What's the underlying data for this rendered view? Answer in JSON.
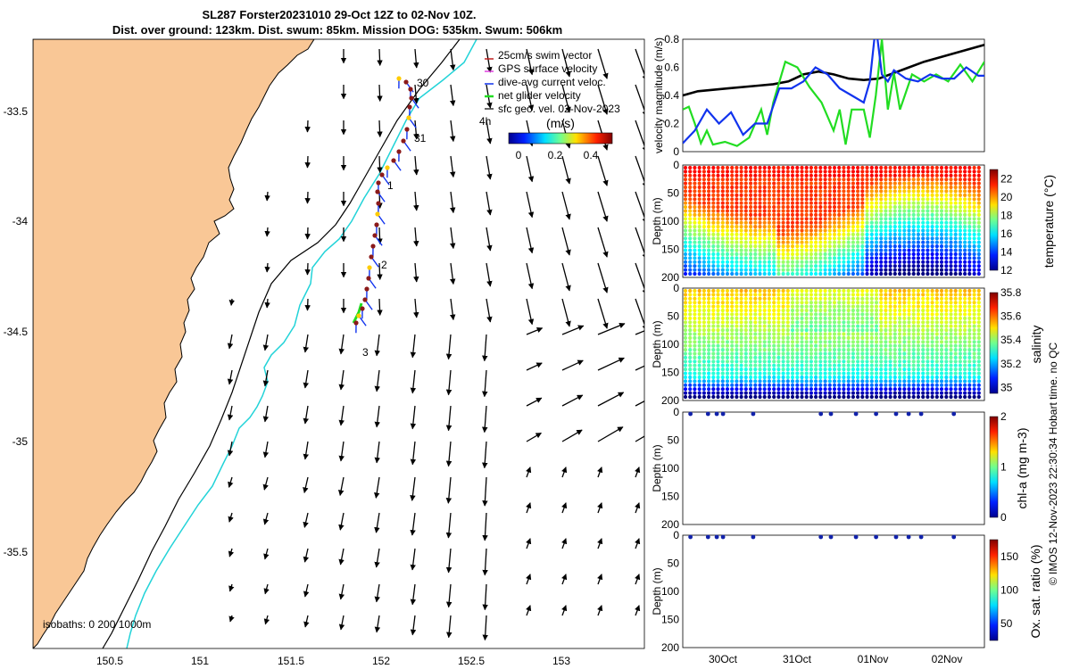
{
  "title": {
    "line1": "SL287 Forster20231010 29-Oct 12Z to 02-Nov 10Z.",
    "line2": "Dist. over ground: 123km. Dist. swum: 85km. Mission DOG: 535km. Swum: 506km"
  },
  "colors": {
    "land": "#F9C796",
    "coast": "#000000",
    "contour200": "#22D3D8",
    "contour1000": "#000000",
    "green": "#22DD22",
    "blue": "#1133EE",
    "track": "#8B1A1A"
  },
  "map": {
    "lon_ticks": [
      "150.5",
      "151",
      "151.5",
      "152",
      "152.5",
      "153"
    ],
    "lat_ticks": [
      "-33.5",
      "-34",
      "-34.5",
      "-35",
      "-35.5"
    ],
    "lon_range": [
      150.1,
      153.45
    ],
    "lat_range": [
      -35.92,
      -33.18
    ],
    "legend": [
      "25cm/s swim vector",
      "GPS surface velocity",
      "dive-avg current veloc.",
      "net glider velocity",
      "sfc geo. vel. 02-Nov-2023"
    ],
    "legend_note": "4h",
    "colorbar_label": "(m/s)",
    "colorbar_ticks": [
      "0",
      "0.2",
      "0.4"
    ],
    "isobaths_label": "isobaths: 0   200  1000m",
    "day_labels": [
      "30",
      "31",
      "1",
      "2",
      "3"
    ]
  },
  "chart_data": [
    {
      "type": "line",
      "title": "",
      "ylabel": "velocity magnitude (m/s)",
      "ylim": [
        0,
        0.8
      ],
      "yticks": [
        "0",
        "0.2",
        "0.4",
        "0.6",
        "0.8"
      ],
      "xlim": [
        0,
        1
      ],
      "series": [
        {
          "name": "sfc geo. vel.",
          "color": "#000000",
          "x": [
            0,
            0.05,
            0.15,
            0.25,
            0.3,
            0.35,
            0.4,
            0.45,
            0.5,
            0.55,
            0.6,
            0.65,
            0.7,
            0.75,
            0.8,
            0.85,
            0.9,
            0.95,
            1
          ],
          "values": [
            0.4,
            0.43,
            0.45,
            0.47,
            0.48,
            0.5,
            0.55,
            0.57,
            0.55,
            0.52,
            0.51,
            0.52,
            0.56,
            0.6,
            0.64,
            0.67,
            0.7,
            0.73,
            0.76
          ]
        },
        {
          "name": "net glider velocity",
          "color": "#22DD22",
          "x": [
            0,
            0.02,
            0.04,
            0.06,
            0.08,
            0.1,
            0.14,
            0.18,
            0.22,
            0.26,
            0.28,
            0.3,
            0.34,
            0.38,
            0.42,
            0.46,
            0.5,
            0.52,
            0.54,
            0.56,
            0.6,
            0.62,
            0.64,
            0.66,
            0.68,
            0.7,
            0.72,
            0.76,
            0.8,
            0.84,
            0.88,
            0.92,
            0.96,
            1
          ],
          "values": [
            0.3,
            0.32,
            0.2,
            0.06,
            0.15,
            0.05,
            0.07,
            0.04,
            0.1,
            0.3,
            0.12,
            0.35,
            0.64,
            0.6,
            0.46,
            0.35,
            0.15,
            0.3,
            0.05,
            0.3,
            0.3,
            0.1,
            0.4,
            0.8,
            0.3,
            0.56,
            0.3,
            0.55,
            0.5,
            0.55,
            0.5,
            0.62,
            0.5,
            0.64
          ]
        },
        {
          "name": "dive-avg current veloc.",
          "color": "#1133EE",
          "x": [
            0,
            0.04,
            0.08,
            0.12,
            0.16,
            0.2,
            0.24,
            0.28,
            0.32,
            0.36,
            0.4,
            0.44,
            0.48,
            0.52,
            0.56,
            0.6,
            0.62,
            0.64,
            0.66,
            0.68,
            0.7,
            0.74,
            0.78,
            0.82,
            0.86,
            0.9,
            0.94,
            0.98,
            1
          ],
          "values": [
            0.06,
            0.15,
            0.3,
            0.2,
            0.28,
            0.12,
            0.2,
            0.2,
            0.45,
            0.45,
            0.5,
            0.6,
            0.55,
            0.45,
            0.4,
            0.35,
            0.5,
            0.9,
            0.55,
            0.5,
            0.58,
            0.52,
            0.5,
            0.55,
            0.52,
            0.52,
            0.6,
            0.54,
            0.54
          ]
        }
      ]
    },
    {
      "type": "heatmap",
      "variable": "temperature",
      "cbar_label": "temperature (°C)",
      "ylabel": "Depth (m)",
      "yticks": [
        "0",
        "50",
        "100",
        "150",
        "200"
      ],
      "cbar_ticks": [
        "12",
        "14",
        "16",
        "18",
        "20",
        "22"
      ],
      "clim": [
        12,
        23
      ]
    },
    {
      "type": "heatmap",
      "variable": "salinity",
      "cbar_label": "salinity",
      "ylabel": "Depth (m)",
      "yticks": [
        "0",
        "50",
        "100",
        "150",
        "200"
      ],
      "cbar_ticks": [
        "35",
        "35.2",
        "35.4",
        "35.6",
        "35.8"
      ],
      "clim": [
        34.95,
        35.8
      ]
    },
    {
      "type": "scatter",
      "variable": "chl-a",
      "cbar_label": "chl-a (mg m-3)",
      "ylabel": "Depth (m)",
      "yticks": [
        "0",
        "50",
        "100",
        "150",
        "200"
      ],
      "cbar_ticks": [
        "0",
        "1",
        "2"
      ],
      "x": [
        0.02,
        0.09,
        0.125,
        0.15,
        0.27,
        0.54,
        0.58,
        0.68,
        0.76,
        0.84,
        0.89,
        0.94,
        1.07
      ],
      "values": [
        0,
        0,
        0,
        0,
        0,
        0,
        0,
        0,
        0,
        0,
        0,
        0,
        0
      ]
    },
    {
      "type": "scatter",
      "variable": "oxygen",
      "cbar_label": "Ox. sat. ratio (%)",
      "ylabel": "Depth (m)",
      "yticks": [
        "0",
        "50",
        "100",
        "150",
        "200"
      ],
      "cbar_ticks": [
        "50",
        "100",
        "150"
      ],
      "xticks": [
        "30Oct",
        "31Oct",
        "01Nov",
        "02Nov"
      ],
      "x": [
        0.02,
        0.09,
        0.125,
        0.15,
        0.27,
        0.54,
        0.58,
        0.68,
        0.76,
        0.84,
        0.89,
        0.94,
        1.07
      ],
      "values": [
        0,
        0,
        0,
        0,
        0,
        0,
        0,
        0,
        0,
        0,
        0,
        0,
        0
      ]
    }
  ],
  "footer": "© IMOS 12-Nov-2023 22:30:34 Hobart time. no QC"
}
